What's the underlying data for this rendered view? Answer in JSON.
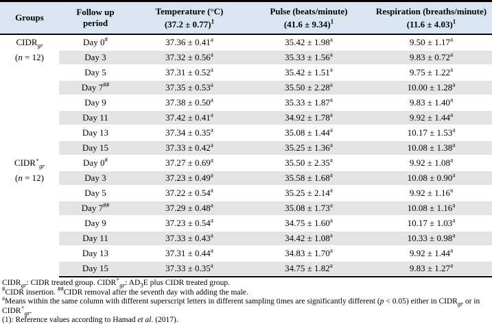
{
  "colors": {
    "header_bg": "#d9e5f1",
    "stripe": "#e4e4e4",
    "border": "#000000",
    "text": "#000000"
  },
  "table": {
    "header": {
      "groups": "Groups",
      "followup": "Follow up period",
      "cols": [
        {
          "line1": "Temperature (°C)",
          "line2": "(37.2 ± 0.77)",
          "sup": "1"
        },
        {
          "line1": "Pulse (beats/minute)",
          "line2": "(41.6 ± 9.34)",
          "sup": "1"
        },
        {
          "line1": "Respiration (breaths/minute)",
          "line2": "(11.6 ± 4.03)",
          "sup": "1"
        }
      ]
    },
    "value_sup": "a",
    "groups": [
      {
        "name": [
          {
            "t": "CIDR"
          },
          {
            "t": "gr",
            "s": "sub-i"
          }
        ],
        "n": [
          {
            "t": "("
          },
          {
            "t": "n",
            "s": "i"
          },
          {
            "t": " = 12)"
          }
        ]
      },
      {
        "name": [
          {
            "t": "CIDR"
          },
          {
            "t": "+",
            "s": "sup"
          },
          {
            "t": "gr",
            "s": "sub-i"
          }
        ],
        "n": [
          {
            "t": "("
          },
          {
            "t": "n",
            "s": "i"
          },
          {
            "t": " = 12)"
          }
        ]
      }
    ],
    "rows": [
      {
        "day": "Day 0",
        "mark": "#",
        "temp": "37.36 ± 0.41",
        "pulse": "35.42 ± 1.98",
        "resp": "9.50 ± 1.17"
      },
      {
        "day": "Day 3",
        "mark": "",
        "temp": "37.32 ± 0.56",
        "pulse": "35.33 ± 1.56",
        "resp": "9.83 ± 0.72"
      },
      {
        "day": "Day 5",
        "mark": "",
        "temp": "37.31 ± 0.52",
        "pulse": "35.42 ± 1.51",
        "resp": "9.75 ± 1.22"
      },
      {
        "day": "Day 7",
        "mark": "##",
        "temp": "37.35 ± 0.53",
        "pulse": "35.50 ± 2.28",
        "resp": "10.00 ± 1.28"
      },
      {
        "day": "Day 9",
        "mark": "",
        "temp": "37.38 ± 0.50",
        "pulse": "35.33 ± 1.87",
        "resp": "9.83 ± 1.40"
      },
      {
        "day": "Day 11",
        "mark": "",
        "temp": "37.42 ± 0.41",
        "pulse": "34.92 ± 1.78",
        "resp": "9.92 ± 1.44"
      },
      {
        "day": "Day 13",
        "mark": "",
        "temp": "37.34 ± 0.35",
        "pulse": "35.08 ± 1.44",
        "resp": "10.17 ± 1.53"
      },
      {
        "day": "Day 15",
        "mark": "",
        "temp": "37.33 ± 0.42",
        "pulse": "35.25 ± 1.36",
        "resp": "10.08 ± 1.38"
      },
      {
        "day": "Day 0",
        "mark": "#",
        "temp": "37.27 ± 0.69",
        "pulse": "35.50 ± 2.35",
        "resp": "9.92 ± 1.08"
      },
      {
        "day": "Day 3",
        "mark": "",
        "temp": "37.23 ± 0.49",
        "pulse": "35.58 ± 1.68",
        "resp": "10.08 ± 0.90"
      },
      {
        "day": "Day 5",
        "mark": "",
        "temp": "37.22 ± 0.54",
        "pulse": "35.25 ± 2.14",
        "resp": "9.92 ± 1.16"
      },
      {
        "day": "Day 7",
        "mark": "##",
        "temp": "37.29 ± 0.48",
        "pulse": "35.08 ± 1.73",
        "resp": "10.08 ± 1.16"
      },
      {
        "day": "Day 9",
        "mark": "",
        "temp": "37.23 ± 0.54",
        "pulse": "34.75 ± 1.60",
        "resp": "10.17 ± 1.03"
      },
      {
        "day": "Day 11",
        "mark": "",
        "temp": "37.33 ± 0.43",
        "pulse": "34.42 ± 1.08",
        "resp": "10.33 ± 0.98"
      },
      {
        "day": "Day 13",
        "mark": "",
        "temp": "37.31 ± 0.44",
        "pulse": "34.83 ± 1.70",
        "resp": "9.92 ± 1.44"
      },
      {
        "day": "Day 15",
        "mark": "",
        "temp": "37.33 ± 0.35",
        "pulse": "34.75 ± 1.82",
        "resp": "9.83 ± 1.27"
      }
    ]
  },
  "footnotes": [
    [
      {
        "t": "CIDR"
      },
      {
        "t": "gr",
        "s": "sub-i"
      },
      {
        "t": ": CIDR treated group. CIDR"
      },
      {
        "t": "+",
        "s": "sup"
      },
      {
        "t": "gr",
        "s": "sub-i"
      },
      {
        "t": ": AD"
      },
      {
        "t": "3",
        "s": "sub"
      },
      {
        "t": "E plus CIDR treated group."
      }
    ],
    [
      {
        "t": "#",
        "s": "sup"
      },
      {
        "t": "CIDR insertion. "
      },
      {
        "t": "##",
        "s": "sup"
      },
      {
        "t": "CIDR removal after the seventh day with adding the male."
      }
    ],
    [
      {
        "t": "a",
        "s": "sup"
      },
      {
        "t": "Means within the same column with different superscript letters in different sampling times are significantly different ("
      },
      {
        "t": "p",
        "s": "i"
      },
      {
        "t": " < 0.05) either in CIDR"
      },
      {
        "t": "gr",
        "s": "sub-i"
      },
      {
        "t": " or in CIDR"
      },
      {
        "t": "+",
        "s": "sup"
      },
      {
        "t": "gr",
        "s": "sub-i"
      },
      {
        "t": "."
      }
    ],
    [
      {
        "t": "(1): Reference values according to Hamad "
      },
      {
        "t": "et al",
        "s": "i"
      },
      {
        "t": ". (2017)."
      }
    ]
  ]
}
